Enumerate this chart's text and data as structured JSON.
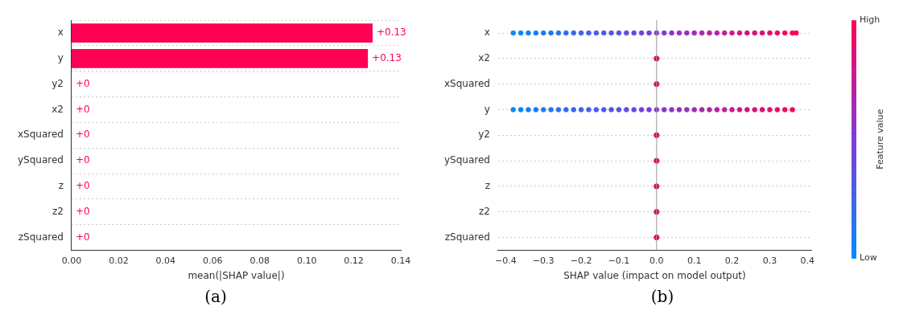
{
  "chart_data": [
    {
      "type": "bar",
      "orientation": "horizontal",
      "categories": [
        "x",
        "y",
        "y2",
        "x2",
        "xSquared",
        "ySquared",
        "z",
        "z2",
        "zSquared"
      ],
      "values": [
        0.128,
        0.126,
        0,
        0,
        0,
        0,
        0,
        0,
        0
      ],
      "value_labels": [
        "+0.13",
        "+0.13",
        "+0",
        "+0",
        "+0",
        "+0",
        "+0",
        "+0",
        "+0"
      ],
      "color": "#ff0052",
      "xlabel": "mean(|SHAP value|)",
      "xlim": [
        0,
        0.14
      ],
      "xticks": [
        {
          "value": 0,
          "label": "0.00"
        },
        {
          "value": 0.02,
          "label": "0.02"
        },
        {
          "value": 0.04,
          "label": "0.04"
        },
        {
          "value": 0.06,
          "label": "0.06"
        },
        {
          "value": 0.08,
          "label": "0.08"
        },
        {
          "value": 0.1,
          "label": "0.10"
        },
        {
          "value": 0.12,
          "label": "0.12"
        },
        {
          "value": 0.14,
          "label": "0.14"
        }
      ],
      "grid": "y",
      "annotations": [
        "(a)"
      ]
    },
    {
      "type": "scatter",
      "orientation": "horizontal",
      "categories": [
        "x",
        "x2",
        "xSquared",
        "y",
        "y2",
        "ySquared",
        "z",
        "z2",
        "zSquared"
      ],
      "xlabel": "SHAP value (impact on model output)",
      "xlim": [
        -0.42,
        0.41
      ],
      "xticks": [
        {
          "value": -0.4,
          "label": "−0.4"
        },
        {
          "value": -0.3,
          "label": "−0.3"
        },
        {
          "value": -0.2,
          "label": "−0.2"
        },
        {
          "value": -0.1,
          "label": "−0.1"
        },
        {
          "value": 0,
          "label": "0.0"
        },
        {
          "value": 0.1,
          "label": "0.1"
        },
        {
          "value": 0.2,
          "label": "0.2"
        },
        {
          "value": 0.3,
          "label": "0.3"
        },
        {
          "value": 0.4,
          "label": "0.4"
        }
      ],
      "clabel": "Feature value",
      "clim": [
        0,
        1
      ],
      "cticks": [
        {
          "value": 0,
          "label": "Low"
        },
        {
          "value": 1,
          "label": "High"
        }
      ],
      "ref_lines": [
        {
          "axis": "x",
          "value": 0,
          "color": "#999999"
        }
      ],
      "grid": "y",
      "annotations": [
        "(b)"
      ],
      "series": [
        {
          "x": [
            "x",
            "x",
            "x",
            "x",
            "x",
            "x",
            "x",
            "x",
            "x",
            "x",
            "x",
            "x",
            "x",
            "x",
            "x",
            "x",
            "x",
            "x",
            "x",
            "x",
            "x",
            "x",
            "x",
            "x",
            "x",
            "x",
            "x",
            "x",
            "x",
            "x",
            "x",
            "x",
            "x",
            "x",
            "x",
            "x",
            "x",
            "x",
            "x"
          ],
          "values": [
            -0.38,
            -0.36,
            -0.34,
            -0.32,
            -0.3,
            -0.28,
            -0.26,
            -0.24,
            -0.22,
            -0.2,
            -0.18,
            -0.16,
            -0.14,
            -0.12,
            -0.1,
            -0.08,
            -0.06,
            -0.04,
            -0.02,
            0,
            0.02,
            0.04,
            0.06,
            0.08,
            0.1,
            0.12,
            0.14,
            0.16,
            0.18,
            0.2,
            0.22,
            0.24,
            0.26,
            0.28,
            0.3,
            0.32,
            0.34,
            0.36,
            0.37
          ],
          "cvalues": [
            0,
            0.03,
            0.05,
            0.08,
            0.1,
            0.13,
            0.16,
            0.19,
            0.21,
            0.24,
            0.27,
            0.29,
            0.32,
            0.35,
            0.37,
            0.4,
            0.43,
            0.45,
            0.48,
            0.51,
            0.53,
            0.56,
            0.59,
            0.61,
            0.64,
            0.67,
            0.69,
            0.72,
            0.75,
            0.77,
            0.8,
            0.83,
            0.85,
            0.88,
            0.91,
            0.93,
            0.96,
            0.99,
            1
          ],
          "colors": [
            "#008bfb",
            "#0886f9",
            "#0d83f8",
            "#147ef5",
            "#197bf4",
            "#2176f2",
            "#2871f0",
            "#306dee",
            "#3569ec",
            "#3c65ea",
            "#4460e8",
            "#495de7",
            "#5158e5",
            "#5853e3",
            "#5d50e1",
            "#654bdf",
            "#6c46dd",
            "#7143dc",
            "#793ed9",
            "#813ad5",
            "#8637d0",
            "#8d34c8",
            "#9530c0",
            "#9a2ebb",
            "#a22ab2",
            "#aa27aa",
            "#af25a5",
            "#b7219d",
            "#bf1e95",
            "#c41b90",
            "#cb1888",
            "#d31480",
            "#d8117a",
            "#e00e72",
            "#e80b6a",
            "#ed0865",
            "#f5055d",
            "#fc0155",
            "#ff0052"
          ]
        },
        {
          "x": [
            "x2",
            "x2",
            "x2",
            "x2",
            "x2"
          ],
          "values": [
            0,
            0,
            0,
            0,
            0
          ],
          "cvalues": [
            0,
            0.25,
            0.5,
            0.75,
            1
          ],
          "colors": [
            "#008bfb",
            "#3f63ea",
            "#7e3bd8",
            "#bf1e95",
            "#ff0052"
          ]
        },
        {
          "x": [
            "xSquared",
            "xSquared",
            "xSquared",
            "xSquared",
            "xSquared"
          ],
          "values": [
            0,
            0,
            0,
            0,
            0
          ],
          "cvalues": [
            0,
            0.25,
            0.5,
            0.75,
            1
          ],
          "colors": [
            "#008bfb",
            "#3f63ea",
            "#7e3bd8",
            "#bf1e95",
            "#ff0052"
          ]
        },
        {
          "x": [
            "y",
            "y",
            "y",
            "y",
            "y",
            "y",
            "y",
            "y",
            "y",
            "y",
            "y",
            "y",
            "y",
            "y",
            "y",
            "y",
            "y",
            "y",
            "y",
            "y",
            "y",
            "y",
            "y",
            "y",
            "y",
            "y",
            "y",
            "y",
            "y",
            "y",
            "y",
            "y",
            "y",
            "y",
            "y",
            "y",
            "y",
            "y"
          ],
          "values": [
            -0.38,
            -0.36,
            -0.34,
            -0.32,
            -0.3,
            -0.28,
            -0.26,
            -0.24,
            -0.22,
            -0.2,
            -0.18,
            -0.16,
            -0.14,
            -0.12,
            -0.1,
            -0.08,
            -0.06,
            -0.04,
            -0.02,
            0,
            0.02,
            0.04,
            0.06,
            0.08,
            0.1,
            0.12,
            0.14,
            0.16,
            0.18,
            0.2,
            0.22,
            0.24,
            0.26,
            0.28,
            0.3,
            0.32,
            0.34,
            0.36
          ],
          "cvalues": [
            0,
            0.03,
            0.05,
            0.08,
            0.1,
            0.13,
            0.16,
            0.19,
            0.21,
            0.24,
            0.27,
            0.29,
            0.32,
            0.35,
            0.37,
            0.4,
            0.43,
            0.45,
            0.48,
            0.51,
            0.53,
            0.56,
            0.59,
            0.61,
            0.64,
            0.67,
            0.69,
            0.72,
            0.75,
            0.77,
            0.8,
            0.83,
            0.85,
            0.88,
            0.91,
            0.93,
            0.96,
            1
          ],
          "colors": [
            "#008bfb",
            "#0886f9",
            "#0d83f8",
            "#147ef5",
            "#197bf4",
            "#2176f2",
            "#2871f0",
            "#306dee",
            "#3569ec",
            "#3c65ea",
            "#4460e8",
            "#495de7",
            "#5158e5",
            "#5853e3",
            "#5d50e1",
            "#654bdf",
            "#6c46dd",
            "#7143dc",
            "#793ed9",
            "#813ad5",
            "#8637d0",
            "#8d34c8",
            "#9530c0",
            "#9a2ebb",
            "#a22ab2",
            "#aa27aa",
            "#af25a5",
            "#b7219d",
            "#bf1e95",
            "#c41b90",
            "#cb1888",
            "#d31480",
            "#d8117a",
            "#e00e72",
            "#e80b6a",
            "#ed0865",
            "#f5055d",
            "#ff0052"
          ]
        },
        {
          "x": [
            "y2",
            "y2",
            "y2",
            "y2",
            "y2"
          ],
          "values": [
            0,
            0,
            0,
            0,
            0
          ],
          "cvalues": [
            0,
            0.25,
            0.5,
            0.75,
            1
          ],
          "colors": [
            "#008bfb",
            "#3f63ea",
            "#7e3bd8",
            "#bf1e95",
            "#ff0052"
          ]
        },
        {
          "x": [
            "ySquared",
            "ySquared",
            "ySquared",
            "ySquared",
            "ySquared"
          ],
          "values": [
            0,
            0,
            0,
            0,
            0
          ],
          "cvalues": [
            0,
            0.25,
            0.5,
            0.75,
            1
          ],
          "colors": [
            "#008bfb",
            "#3f63ea",
            "#7e3bd8",
            "#bf1e95",
            "#ff0052"
          ]
        },
        {
          "x": [
            "z",
            "z",
            "z",
            "z",
            "z"
          ],
          "values": [
            0,
            0,
            0,
            0,
            0
          ],
          "cvalues": [
            0,
            0.25,
            0.5,
            0.75,
            1
          ],
          "colors": [
            "#008bfb",
            "#3f63ea",
            "#7e3bd8",
            "#bf1e95",
            "#ff0052"
          ]
        },
        {
          "x": [
            "z2",
            "z2",
            "z2",
            "z2",
            "z2"
          ],
          "values": [
            0,
            0,
            0,
            0,
            0
          ],
          "cvalues": [
            0,
            0.25,
            0.5,
            0.75,
            1
          ],
          "colors": [
            "#008bfb",
            "#3f63ea",
            "#7e3bd8",
            "#bf1e95",
            "#ff0052"
          ]
        },
        {
          "x": [
            "zSquared",
            "zSquared",
            "zSquared",
            "zSquared",
            "zSquared"
          ],
          "values": [
            0,
            0,
            0,
            0,
            0
          ],
          "cvalues": [
            0,
            0.25,
            0.5,
            0.75,
            1
          ],
          "colors": [
            "#008bfb",
            "#3f63ea",
            "#7e3bd8",
            "#bf1e95",
            "#ff0052"
          ]
        }
      ]
    }
  ]
}
